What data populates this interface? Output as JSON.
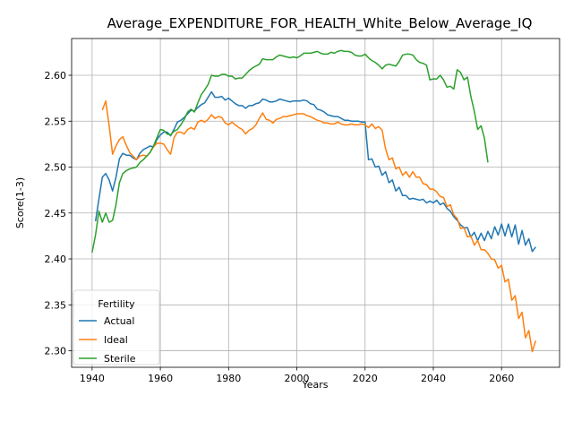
{
  "chart_data": {
    "type": "line",
    "title": "Average_EXPENDITURE_FOR_HEALTH_White_Below_Average_IQ",
    "xlabel": "Years",
    "ylabel": "Score(1-3)",
    "xlim": [
      1934,
      2077
    ],
    "ylim": [
      2.282,
      2.64
    ],
    "xticks": [
      1940,
      1960,
      1980,
      2000,
      2020,
      2040,
      2060
    ],
    "yticks": [
      2.3,
      2.35,
      2.4,
      2.45,
      2.5,
      2.55,
      2.6
    ],
    "xtick_labels": [
      "1940",
      "1960",
      "1980",
      "2000",
      "2020",
      "2040",
      "2060"
    ],
    "ytick_labels": [
      "2.30",
      "2.35",
      "2.40",
      "2.45",
      "2.50",
      "2.55",
      "2.60"
    ],
    "grid": true,
    "legend": {
      "title": "Fertility",
      "placement": "lower-left"
    },
    "series": [
      {
        "name": "Actual",
        "color": "#1f77b4",
        "x": [
          1941,
          1942,
          1943,
          1944,
          1945,
          1946,
          1947,
          1948,
          1949,
          1950,
          1951,
          1952,
          1953,
          1954,
          1955,
          1956,
          1957,
          1958,
          1959,
          1960,
          1961,
          1962,
          1963,
          1964,
          1965,
          1966,
          1967,
          1968,
          1969,
          1970,
          1971,
          1972,
          1973,
          1974,
          1975,
          1976,
          1977,
          1978,
          1979,
          1980,
          1981,
          1982,
          1983,
          1984,
          1985,
          1986,
          1987,
          1988,
          1989,
          1990,
          1991,
          1992,
          1993,
          1994,
          1995,
          1996,
          1997,
          1998,
          1999,
          2000,
          2001,
          2002,
          2003,
          2004,
          2005,
          2006,
          2007,
          2008,
          2009,
          2010,
          2011,
          2012,
          2013,
          2014,
          2015,
          2016,
          2017,
          2018,
          2019,
          2020,
          2021,
          2022,
          2023,
          2024,
          2025,
          2026,
          2027,
          2028,
          2029,
          2030,
          2031,
          2032,
          2033,
          2034,
          2035,
          2036,
          2037,
          2038,
          2039,
          2040,
          2041,
          2042,
          2043,
          2044,
          2045,
          2046,
          2047,
          2048,
          2049,
          2050,
          2051,
          2052,
          2053,
          2054,
          2055,
          2056,
          2057,
          2058,
          2059,
          2060,
          2061,
          2062,
          2063,
          2064,
          2065,
          2066,
          2067,
          2068,
          2069,
          2070
        ],
        "y": [
          2.441,
          2.465,
          2.489,
          2.493,
          2.486,
          2.474,
          2.489,
          2.509,
          2.515,
          2.513,
          2.513,
          2.51,
          2.508,
          2.515,
          2.519,
          2.521,
          2.523,
          2.522,
          2.53,
          2.535,
          2.538,
          2.538,
          2.534,
          2.541,
          2.549,
          2.551,
          2.554,
          2.558,
          2.562,
          2.561,
          2.565,
          2.568,
          2.57,
          2.576,
          2.582,
          2.576,
          2.576,
          2.577,
          2.573,
          2.575,
          2.572,
          2.569,
          2.567,
          2.567,
          2.564,
          2.567,
          2.567,
          2.569,
          2.57,
          2.574,
          2.573,
          2.571,
          2.571,
          2.572,
          2.574,
          2.573,
          2.572,
          2.571,
          2.572,
          2.572,
          2.572,
          2.573,
          2.572,
          2.569,
          2.568,
          2.563,
          2.562,
          2.56,
          2.557,
          2.556,
          2.555,
          2.555,
          2.553,
          2.551,
          2.551,
          2.55,
          2.55,
          2.55,
          2.549,
          2.549,
          2.508,
          2.509,
          2.5,
          2.501,
          2.491,
          2.495,
          2.483,
          2.486,
          2.474,
          2.478,
          2.469,
          2.469,
          2.465,
          2.466,
          2.465,
          2.464,
          2.465,
          2.461,
          2.463,
          2.461,
          2.464,
          2.459,
          2.461,
          2.455,
          2.452,
          2.446,
          2.442,
          2.437,
          2.434,
          2.434,
          2.424,
          2.429,
          2.42,
          2.428,
          2.42,
          2.43,
          2.422,
          2.435,
          2.426,
          2.438,
          2.425,
          2.438,
          2.424,
          2.437,
          2.416,
          2.431,
          2.415,
          2.422,
          2.408,
          2.413
        ]
      },
      {
        "name": "Ideal",
        "color": "#ff7f0e",
        "x": [
          1943,
          1944,
          1945,
          1946,
          1947,
          1948,
          1949,
          1950,
          1951,
          1952,
          1953,
          1954,
          1955,
          1956,
          1957,
          1958,
          1959,
          1960,
          1961,
          1962,
          1963,
          1964,
          1965,
          1966,
          1967,
          1968,
          1969,
          1970,
          1971,
          1972,
          1973,
          1974,
          1975,
          1976,
          1977,
          1978,
          1979,
          1980,
          1981,
          1982,
          1983,
          1984,
          1985,
          1986,
          1987,
          1988,
          1989,
          1990,
          1991,
          1992,
          1993,
          1994,
          1995,
          1996,
          1997,
          1998,
          1999,
          2000,
          2001,
          2002,
          2003,
          2004,
          2005,
          2006,
          2007,
          2008,
          2009,
          2010,
          2011,
          2012,
          2013,
          2014,
          2015,
          2016,
          2017,
          2018,
          2019,
          2020,
          2021,
          2022,
          2023,
          2024,
          2025,
          2026,
          2027,
          2028,
          2029,
          2030,
          2031,
          2032,
          2033,
          2034,
          2035,
          2036,
          2037,
          2038,
          2039,
          2040,
          2041,
          2042,
          2043,
          2044,
          2045,
          2046,
          2047,
          2048,
          2049,
          2050,
          2051,
          2052,
          2053,
          2054,
          2055,
          2056,
          2057,
          2058,
          2059,
          2060,
          2061,
          2062,
          2063,
          2064,
          2065,
          2066,
          2067,
          2068,
          2069,
          2070
        ],
        "y": [
          2.562,
          2.572,
          2.545,
          2.514,
          2.523,
          2.53,
          2.533,
          2.524,
          2.516,
          2.512,
          2.508,
          2.512,
          2.513,
          2.512,
          2.516,
          2.522,
          2.526,
          2.526,
          2.525,
          2.519,
          2.514,
          2.532,
          2.538,
          2.538,
          2.536,
          2.541,
          2.543,
          2.541,
          2.549,
          2.551,
          2.549,
          2.552,
          2.557,
          2.553,
          2.555,
          2.554,
          2.548,
          2.546,
          2.549,
          2.546,
          2.543,
          2.541,
          2.536,
          2.54,
          2.542,
          2.546,
          2.553,
          2.559,
          2.552,
          2.551,
          2.548,
          2.552,
          2.553,
          2.555,
          2.555,
          2.556,
          2.557,
          2.558,
          2.558,
          2.558,
          2.556,
          2.555,
          2.553,
          2.551,
          2.55,
          2.548,
          2.548,
          2.547,
          2.547,
          2.549,
          2.547,
          2.546,
          2.546,
          2.547,
          2.546,
          2.546,
          2.547,
          2.546,
          2.543,
          2.547,
          2.542,
          2.544,
          2.54,
          2.52,
          2.508,
          2.51,
          2.498,
          2.5,
          2.491,
          2.495,
          2.489,
          2.495,
          2.489,
          2.489,
          2.482,
          2.481,
          2.476,
          2.476,
          2.473,
          2.468,
          2.467,
          2.457,
          2.459,
          2.448,
          2.444,
          2.433,
          2.434,
          2.424,
          2.425,
          2.415,
          2.42,
          2.41,
          2.41,
          2.406,
          2.4,
          2.399,
          2.39,
          2.393,
          2.375,
          2.378,
          2.355,
          2.36,
          2.335,
          2.342,
          2.314,
          2.322,
          2.299,
          2.311
        ]
      },
      {
        "name": "Sterile",
        "color": "#2ca02c",
        "x": [
          1940,
          1941,
          1942,
          1943,
          1944,
          1945,
          1946,
          1947,
          1948,
          1949,
          1950,
          1951,
          1952,
          1953,
          1954,
          1955,
          1956,
          1957,
          1958,
          1959,
          1960,
          1961,
          1962,
          1963,
          1964,
          1965,
          1966,
          1967,
          1968,
          1969,
          1970,
          1971,
          1972,
          1973,
          1974,
          1975,
          1976,
          1977,
          1978,
          1979,
          1980,
          1981,
          1982,
          1983,
          1984,
          1985,
          1986,
          1987,
          1988,
          1989,
          1990,
          1991,
          1992,
          1993,
          1994,
          1995,
          1996,
          1997,
          1998,
          1999,
          2000,
          2001,
          2002,
          2003,
          2004,
          2005,
          2006,
          2007,
          2008,
          2009,
          2010,
          2011,
          2012,
          2013,
          2014,
          2015,
          2016,
          2017,
          2018,
          2019,
          2020,
          2021,
          2022,
          2023,
          2024,
          2025,
          2026,
          2027,
          2028,
          2029,
          2030,
          2031,
          2032,
          2033,
          2034,
          2035,
          2036,
          2037,
          2038,
          2039,
          2040,
          2041,
          2042,
          2043,
          2044,
          2045,
          2046,
          2047,
          2048,
          2049,
          2050,
          2051,
          2052,
          2053,
          2054,
          2055,
          2056
        ],
        "y": [
          2.407,
          2.426,
          2.452,
          2.44,
          2.45,
          2.44,
          2.442,
          2.459,
          2.483,
          2.493,
          2.496,
          2.498,
          2.499,
          2.5,
          2.505,
          2.508,
          2.512,
          2.516,
          2.523,
          2.532,
          2.541,
          2.54,
          2.536,
          2.535,
          2.539,
          2.541,
          2.546,
          2.552,
          2.56,
          2.563,
          2.56,
          2.57,
          2.579,
          2.584,
          2.59,
          2.6,
          2.599,
          2.599,
          2.601,
          2.601,
          2.599,
          2.599,
          2.596,
          2.597,
          2.597,
          2.601,
          2.605,
          2.608,
          2.61,
          2.612,
          2.618,
          2.617,
          2.617,
          2.617,
          2.62,
          2.622,
          2.621,
          2.62,
          2.619,
          2.62,
          2.619,
          2.621,
          2.624,
          2.624,
          2.624,
          2.625,
          2.626,
          2.624,
          2.623,
          2.623,
          2.625,
          2.624,
          2.626,
          2.627,
          2.626,
          2.626,
          2.625,
          2.622,
          2.621,
          2.621,
          2.623,
          2.619,
          2.616,
          2.614,
          2.611,
          2.607,
          2.611,
          2.612,
          2.611,
          2.61,
          2.615,
          2.622,
          2.623,
          2.623,
          2.622,
          2.617,
          2.614,
          2.613,
          2.611,
          2.595,
          2.596,
          2.596,
          2.6,
          2.595,
          2.587,
          2.588,
          2.585,
          2.606,
          2.603,
          2.595,
          2.598,
          2.577,
          2.561,
          2.541,
          2.545,
          2.531,
          2.505
        ]
      }
    ]
  }
}
